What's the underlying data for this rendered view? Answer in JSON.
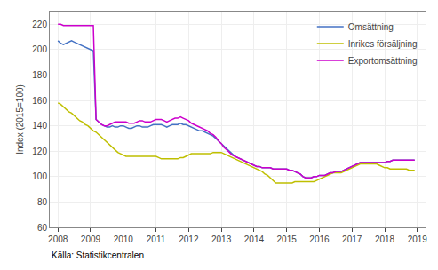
{
  "chart_data": {
    "type": "line",
    "ylabel": "Index (2015=100)",
    "source": "Källa: Statistikcentralen",
    "x": [
      2008,
      2008.083333,
      2008.166667,
      2008.25,
      2008.333333,
      2008.416667,
      2008.5,
      2008.583333,
      2008.666667,
      2008.75,
      2008.833333,
      2008.916667,
      2009,
      2009.083333,
      2009.166667,
      2009.25,
      2009.333333,
      2009.416667,
      2009.5,
      2009.583333,
      2009.666667,
      2009.75,
      2009.833333,
      2009.916667,
      2010,
      2010.083333,
      2010.166667,
      2010.25,
      2010.333333,
      2010.416667,
      2010.5,
      2010.583333,
      2010.666667,
      2010.75,
      2010.833333,
      2010.916667,
      2011,
      2011.083333,
      2011.166667,
      2011.25,
      2011.333333,
      2011.416667,
      2011.5,
      2011.583333,
      2011.666667,
      2011.75,
      2011.833333,
      2011.916667,
      2012,
      2012.083333,
      2012.166667,
      2012.25,
      2012.333333,
      2012.416667,
      2012.5,
      2012.583333,
      2012.666667,
      2012.75,
      2012.833333,
      2012.916667,
      2013,
      2013.083333,
      2013.166667,
      2013.25,
      2013.333333,
      2013.416667,
      2013.5,
      2013.583333,
      2013.666667,
      2013.75,
      2013.833333,
      2013.916667,
      2014,
      2014.083333,
      2014.166667,
      2014.25,
      2014.333333,
      2014.416667,
      2014.5,
      2014.583333,
      2014.666667,
      2014.75,
      2014.833333,
      2014.916667,
      2015,
      2015.083333,
      2015.166667,
      2015.25,
      2015.333333,
      2015.416667,
      2015.5,
      2015.583333,
      2015.666667,
      2015.75,
      2015.833333,
      2015.916667,
      2016,
      2016.083333,
      2016.166667,
      2016.25,
      2016.333333,
      2016.416667,
      2016.5,
      2016.583333,
      2016.666667,
      2016.75,
      2016.833333,
      2016.916667,
      2017,
      2017.083333,
      2017.166667,
      2017.25,
      2017.333333,
      2017.416667,
      2017.5,
      2017.583333,
      2017.666667,
      2017.75,
      2017.833333,
      2017.916667,
      2018,
      2018.083333,
      2018.166667,
      2018.25,
      2018.333333,
      2018.416667,
      2018.5,
      2018.583333,
      2018.666667,
      2018.75,
      2018.833333,
      2018.916667
    ],
    "series": [
      {
        "name": "Omsättning",
        "color": "#4472C4",
        "values": [
          207,
          205,
          204,
          205,
          206,
          207,
          206,
          205,
          204,
          203,
          202,
          201,
          200,
          199,
          145,
          143,
          141,
          140,
          139,
          139,
          140,
          139,
          139,
          140,
          140,
          139,
          138,
          138,
          139,
          140,
          140,
          139,
          139,
          139,
          140,
          141,
          141,
          141,
          141,
          140,
          139,
          140,
          141,
          141,
          141,
          142,
          141,
          141,
          140,
          139,
          138,
          137,
          136,
          136,
          135,
          134,
          133,
          132,
          130,
          128,
          126,
          124,
          122,
          120,
          118,
          116,
          115,
          114,
          113,
          112,
          111,
          110,
          109,
          108,
          108,
          107,
          107,
          107,
          107,
          106,
          106,
          106,
          106,
          106,
          106,
          105,
          105,
          104,
          103,
          102,
          100,
          99,
          99,
          99,
          100,
          100,
          101,
          101,
          101,
          102,
          103,
          103,
          104,
          104,
          104,
          105,
          106,
          107,
          108,
          109,
          110,
          111,
          111,
          111,
          111,
          111,
          111,
          111,
          111,
          111,
          111,
          112,
          112,
          113,
          113,
          113,
          113,
          113,
          113,
          113,
          113,
          113
        ]
      },
      {
        "name": "Inrikes försäljning",
        "color": "#BFBF00",
        "values": [
          158,
          157,
          155,
          153,
          151,
          150,
          148,
          146,
          144,
          143,
          141,
          140,
          138,
          136,
          135,
          133,
          131,
          129,
          127,
          125,
          123,
          121,
          119,
          118,
          117,
          116,
          116,
          116,
          116,
          116,
          116,
          116,
          116,
          116,
          116,
          116,
          116,
          115,
          114,
          114,
          114,
          114,
          114,
          114,
          114,
          115,
          115,
          116,
          117,
          118,
          118,
          118,
          118,
          118,
          118,
          118,
          118,
          119,
          119,
          119,
          119,
          118,
          117,
          116,
          115,
          114,
          113,
          112,
          111,
          110,
          109,
          108,
          107,
          106,
          105,
          104,
          102,
          101,
          99,
          97,
          95,
          95,
          95,
          95,
          95,
          95,
          95,
          96,
          96,
          96,
          96,
          96,
          96,
          96,
          96,
          97,
          98,
          99,
          100,
          101,
          102,
          103,
          103,
          103,
          103,
          104,
          105,
          106,
          107,
          108,
          109,
          110,
          110,
          110,
          110,
          110,
          110,
          110,
          109,
          108,
          107,
          107,
          106,
          106,
          106,
          106,
          106,
          106,
          106,
          105,
          105,
          105
        ]
      },
      {
        "name": "Exportomsättning",
        "color": "#CC00CC",
        "values": [
          220,
          220,
          219,
          219,
          219,
          219,
          219,
          219,
          219,
          219,
          219,
          219,
          219,
          219,
          145,
          143,
          141,
          140,
          140,
          141,
          142,
          143,
          143,
          143,
          143,
          143,
          142,
          142,
          142,
          143,
          144,
          144,
          143,
          143,
          143,
          144,
          145,
          145,
          145,
          144,
          143,
          144,
          145,
          146,
          146,
          147,
          146,
          145,
          144,
          142,
          141,
          140,
          139,
          138,
          137,
          136,
          134,
          133,
          131,
          128,
          126,
          123,
          121,
          119,
          117,
          116,
          115,
          114,
          113,
          112,
          111,
          110,
          109,
          108,
          108,
          107,
          107,
          107,
          107,
          106,
          106,
          106,
          106,
          106,
          106,
          105,
          105,
          104,
          103,
          102,
          100,
          99,
          99,
          99,
          100,
          100,
          101,
          101,
          101,
          102,
          103,
          103,
          104,
          104,
          104,
          105,
          106,
          107,
          108,
          109,
          110,
          111,
          111,
          111,
          111,
          111,
          111,
          111,
          111,
          111,
          111,
          112,
          112,
          113,
          113,
          113,
          113,
          113,
          113,
          113,
          113,
          113
        ]
      }
    ],
    "xlim": [
      2007.75,
      2019.25
    ],
    "xticks": [
      2008,
      2009,
      2010,
      2011,
      2012,
      2013,
      2014,
      2015,
      2016,
      2017,
      2018,
      2019
    ],
    "ylim": [
      60,
      230
    ],
    "yticks": [
      60,
      80,
      100,
      120,
      140,
      160,
      180,
      200,
      220
    ],
    "grid": true,
    "legend": "upper right"
  }
}
